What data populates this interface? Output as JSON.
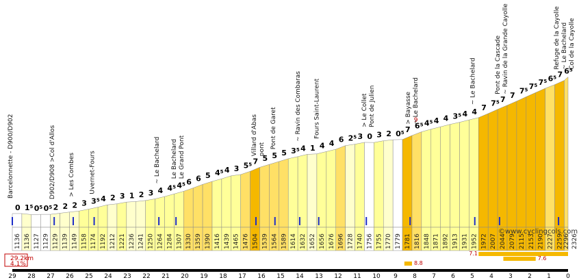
{
  "chart_data": {
    "type": "bar",
    "title": "Col de la Cayolle",
    "distance_label": "29.2km",
    "gradient_label": "4.1%",
    "watermark": "©www.cyclingcols.com",
    "ylim": [
      1100,
      2400
    ],
    "km_ticks": [
      "29",
      "28",
      "27",
      "26",
      "25",
      "24",
      "23",
      "22",
      "21",
      "20",
      "19",
      "18",
      "17",
      "16",
      "15",
      "14",
      "13",
      "12",
      "11",
      "10",
      "9",
      "8",
      "7",
      "6",
      "5",
      "4",
      "3",
      "2",
      "1",
      "0"
    ],
    "segments": [
      {
        "km": 0.0,
        "grade": "0",
        "elev": "1136"
      },
      {
        "km": 0.5,
        "grade": "1",
        "grade_half": true,
        "elev": "1136"
      },
      {
        "km": 1.0,
        "grade": "0",
        "grade_half": true,
        "elev": "1127"
      },
      {
        "km": 1.5,
        "grade": "0",
        "grade_half": true,
        "elev": "1129"
      },
      {
        "km": 2.0,
        "grade": "2",
        "elev": "1129"
      },
      {
        "km": 2.5,
        "grade": "2",
        "elev": "1139"
      },
      {
        "km": 3.0,
        "grade": "2",
        "elev": "1149"
      },
      {
        "km": 3.5,
        "grade": "3",
        "elev": "1158"
      },
      {
        "km": 4.0,
        "grade": "3",
        "grade_half": true,
        "elev": "1174"
      },
      {
        "km": 4.5,
        "grade": "4",
        "elev": "1192"
      },
      {
        "km": 5.0,
        "grade": "2",
        "elev": "1212"
      },
      {
        "km": 5.5,
        "grade": "3",
        "elev": "1221"
      },
      {
        "km": 6.0,
        "grade": "1",
        "elev": "1236"
      },
      {
        "km": 6.5,
        "grade": "2",
        "elev": "1241"
      },
      {
        "km": 7.0,
        "grade": "3",
        "elev": "1250"
      },
      {
        "km": 7.5,
        "grade": "4",
        "elev": "1264"
      },
      {
        "km": 8.0,
        "grade": "4",
        "grade_half": true,
        "elev": "1284"
      },
      {
        "km": 8.5,
        "grade": "4",
        "grade_half": true,
        "elev": "1307"
      },
      {
        "km": 9.0,
        "grade": "6",
        "elev": "1330"
      },
      {
        "km": 9.5,
        "grade": "6",
        "elev": "1359"
      },
      {
        "km": 10.0,
        "grade": "5",
        "elev": "1390"
      },
      {
        "km": 10.5,
        "grade": "4",
        "grade_half": true,
        "elev": "1416"
      },
      {
        "km": 11.0,
        "grade": "4",
        "elev": "1439"
      },
      {
        "km": 11.5,
        "grade": "3",
        "elev": "1465"
      },
      {
        "km": 12.0,
        "grade": "5",
        "grade_half": true,
        "elev": "1476"
      },
      {
        "km": 12.5,
        "grade": "7",
        "elev": "1504"
      },
      {
        "km": 13.0,
        "grade": "5",
        "elev": "1539"
      },
      {
        "km": 13.5,
        "grade": "5",
        "elev": "1564"
      },
      {
        "km": 14.0,
        "grade": "5",
        "elev": "1589"
      },
      {
        "km": 14.5,
        "grade": "3",
        "grade_half": true,
        "elev": "1614"
      },
      {
        "km": 15.0,
        "grade": "4",
        "elev": "1632"
      },
      {
        "km": 15.5,
        "grade": "1",
        "elev": "1652"
      },
      {
        "km": 16.0,
        "grade": "4",
        "elev": "1656"
      },
      {
        "km": 16.5,
        "grade": "4",
        "elev": "1676"
      },
      {
        "km": 17.0,
        "grade": "6",
        "elev": "1696"
      },
      {
        "km": 17.5,
        "grade": "2",
        "grade_half": true,
        "elev": "1728"
      },
      {
        "km": 18.0,
        "grade": "3",
        "elev": "1740"
      },
      {
        "km": 18.5,
        "grade": "0",
        "elev": "1756"
      },
      {
        "km": 19.0,
        "grade": "3",
        "elev": "1755"
      },
      {
        "km": 19.5,
        "grade": "2",
        "elev": "1770"
      },
      {
        "km": 20.0,
        "grade": "0",
        "grade_half": true,
        "elev": "1779"
      },
      {
        "km": 20.5,
        "grade": "7",
        "elev": "1781"
      },
      {
        "km": 21.0,
        "grade": "6",
        "grade_half": true,
        "elev": "1816"
      },
      {
        "km": 21.5,
        "grade": "4",
        "grade_half": true,
        "elev": "1848"
      },
      {
        "km": 22.0,
        "grade": "4",
        "elev": "1871"
      },
      {
        "km": 22.5,
        "grade": "4",
        "elev": "1892"
      },
      {
        "km": 23.0,
        "grade": "3",
        "grade_half": true,
        "elev": "1913"
      },
      {
        "km": 23.5,
        "grade": "4",
        "elev": "1931"
      },
      {
        "km": 24.0,
        "grade": "4",
        "elev": "1952"
      },
      {
        "km": 24.5,
        "grade": "7",
        "elev": "1972"
      },
      {
        "km": 25.0,
        "grade": "7",
        "grade_half": true,
        "elev": "2007"
      },
      {
        "km": 25.5,
        "grade": "7",
        "elev": "2044"
      },
      {
        "km": 26.0,
        "grade": "7",
        "elev": "2079"
      },
      {
        "km": 26.5,
        "grade": "7",
        "grade_half": true,
        "elev": "2115"
      },
      {
        "km": 27.0,
        "grade": "7",
        "grade_half": true,
        "elev": "2153"
      },
      {
        "km": 27.5,
        "grade": "7",
        "grade_half": true,
        "elev": "2190"
      },
      {
        "km": 28.0,
        "grade": "6",
        "grade_half": true,
        "elev": "2227"
      },
      {
        "km": 28.5,
        "grade": "7",
        "elev": "2259"
      },
      {
        "km": 29.0,
        "grade": "6",
        "grade_half": true,
        "elev": "2296"
      }
    ],
    "end_elevation": "2326",
    "max_grade_marker": "9",
    "steepest_1km": [
      {
        "value": "7.1",
        "km_start": 24.5,
        "km_end": 29.2
      },
      {
        "value": "7.6",
        "km_start": 25.8,
        "km_end": 27.5
      },
      {
        "value": "8.8",
        "km_start": 20.6,
        "km_end": 21.0
      }
    ],
    "landmarks": [
      {
        "km": 0.0,
        "lines": [
          "Barcelonnette - D900/D902"
        ]
      },
      {
        "km": 2.2,
        "lines": [
          "D902/D908 >Col d'Allos"
        ]
      },
      {
        "km": 3.2,
        "lines": [
          "> Les Combes"
        ]
      },
      {
        "km": 4.3,
        "lines": [
          "Uvernet-Fours"
        ]
      },
      {
        "km": 7.7,
        "lines": [
          "~ Le Bachelard"
        ]
      },
      {
        "km": 8.6,
        "lines": [
          "Le Bachelard",
          "Le Grand Pont"
        ]
      },
      {
        "km": 12.8,
        "lines": [
          "Villard d'Abas",
          "pont"
        ]
      },
      {
        "km": 13.8,
        "lines": [
          "Pont de Garet"
        ]
      },
      {
        "km": 15.1,
        "lines": [
          "~ Ravin des Combaras"
        ]
      },
      {
        "km": 16.1,
        "lines": [
          "Fours Saint-Laurent"
        ]
      },
      {
        "km": 18.6,
        "lines": [
          "> Le Collet",
          "Pont de Julien"
        ]
      },
      {
        "km": 20.9,
        "lines": [
          "> Bayasse",
          "~ Le Bachelard"
        ]
      },
      {
        "km": 24.3,
        "lines": [
          "~ Le Bachelard"
        ]
      },
      {
        "km": 25.6,
        "lines": [
          "Pont de la Cascade",
          "~ Ravin de la Grande Cayolle"
        ]
      },
      {
        "km": 28.7,
        "lines": [
          "Refuge de la Cayolle",
          "~ Le Bachelard",
          "Col de la Cayolle"
        ]
      }
    ],
    "colors": {
      "c0": "#ffffff",
      "c1": "#ffffcc",
      "c3": "#ffff99",
      "c5": "#ffe066",
      "c7": "#f5b800",
      "bg": "#ffffff"
    }
  }
}
